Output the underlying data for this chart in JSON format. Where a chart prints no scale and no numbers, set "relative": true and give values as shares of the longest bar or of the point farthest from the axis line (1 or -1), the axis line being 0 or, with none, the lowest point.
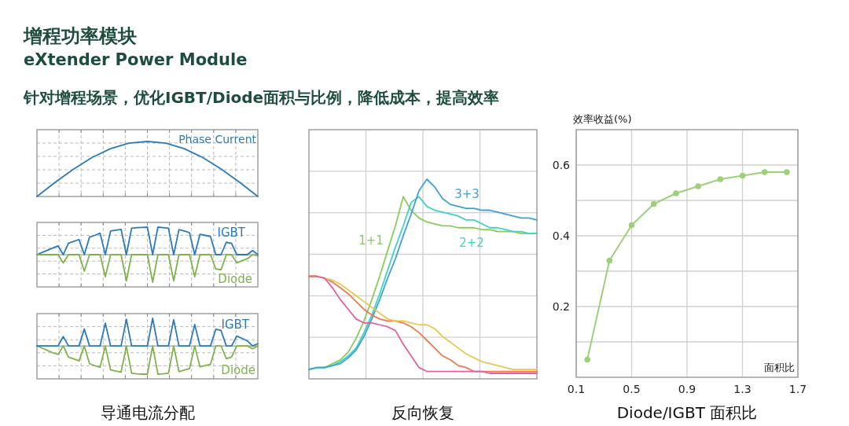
{
  "chart_data": [
    {
      "type": "other",
      "title": "增程功率模块",
      "subtitle": "eXtender Power Module",
      "annotations": [
        "针对增程场景，优化IGBT/Diode面积与比例，降低成本，提高效率"
      ]
    },
    {
      "type": "line",
      "relative": true,
      "grid": true,
      "categories": [
        null,
        null,
        null,
        null,
        null,
        null,
        null,
        null,
        null,
        null,
        null,
        null,
        null
      ],
      "series": [
        {
          "name": "Phase Current",
          "color": "#2b7bb9",
          "values": [
            0,
            0.26,
            0.5,
            0.71,
            0.87,
            0.97,
            1.0,
            0.97,
            0.87,
            0.71,
            0.5,
            0.26,
            0
          ]
        }
      ]
    },
    {
      "type": "line",
      "relative": true,
      "grid": true,
      "categories": [
        null,
        null,
        null,
        null,
        null,
        null,
        null,
        null,
        null,
        null,
        null,
        null,
        null,
        null,
        null,
        null,
        null,
        null,
        null,
        null,
        null,
        null,
        null,
        null,
        null,
        null,
        null,
        null,
        null,
        null,
        null,
        null,
        null,
        null,
        null,
        null,
        null,
        null,
        null,
        null,
        null,
        null,
        null
      ],
      "series": [
        {
          "name": "IGBT",
          "color": "#2b7bb9",
          "values": [
            0,
            0.08,
            0.16,
            0.24,
            0.32,
            0,
            0.42,
            0.48,
            0.55,
            0,
            0.64,
            0.7,
            0.78,
            0,
            0.86,
            0.89,
            0.92,
            0,
            0.96,
            0.98,
            0.99,
            1.0,
            0,
            1.0,
            0.98,
            0.96,
            0,
            0.91,
            0.86,
            0.8,
            0,
            0.74,
            0.7,
            0.66,
            0,
            0,
            0.45,
            0.41,
            0,
            0,
            0,
            0.15,
            0
          ]
        },
        {
          "name": "Diode",
          "color": "#7fb24a",
          "values": [
            0,
            0,
            0,
            0,
            0,
            -0.3,
            0,
            0,
            0,
            -0.6,
            0,
            0,
            0,
            -0.8,
            0,
            0,
            0,
            -0.95,
            0,
            0,
            0,
            0,
            -1.0,
            0,
            0,
            0,
            -0.95,
            0,
            0,
            0,
            -0.8,
            0,
            0,
            0,
            -0.52,
            -0.55,
            0,
            0,
            -0.3,
            -0.22,
            -0.15,
            0,
            -0.05
          ]
        }
      ]
    },
    {
      "type": "line",
      "relative": true,
      "grid": true,
      "xlabel": "导通电流分配",
      "categories": [
        null,
        null,
        null,
        null,
        null,
        null,
        null,
        null,
        null,
        null,
        null,
        null,
        null,
        null,
        null,
        null,
        null,
        null,
        null,
        null,
        null,
        null,
        null,
        null,
        null,
        null,
        null,
        null,
        null,
        null,
        null,
        null,
        null,
        null,
        null,
        null,
        null,
        null,
        null,
        null,
        null,
        null,
        null
      ],
      "series": [
        {
          "name": "Diode",
          "color": "#7fb24a",
          "values": [
            0,
            -0.08,
            -0.16,
            -0.24,
            -0.3,
            0,
            -0.4,
            -0.46,
            -0.53,
            0,
            -0.63,
            -0.7,
            -0.76,
            0,
            -0.85,
            -0.89,
            -0.93,
            0,
            -0.97,
            -0.99,
            -1.0,
            -1.0,
            0,
            -1.0,
            -0.99,
            -0.97,
            0,
            -0.91,
            -0.86,
            -0.81,
            0,
            -0.74,
            -0.7,
            -0.65,
            0,
            0,
            -0.45,
            -0.4,
            0,
            0,
            0,
            -0.1,
            0
          ]
        },
        {
          "name": "IGBT",
          "color": "#2b7bb9",
          "values": [
            0,
            0,
            0,
            0,
            0,
            0.33,
            0,
            0,
            0,
            0.6,
            0,
            0,
            0,
            0.81,
            0,
            0,
            0,
            0.95,
            0,
            0,
            0,
            0,
            0.98,
            0,
            0,
            0,
            0.93,
            0,
            0,
            0,
            0.76,
            0,
            0,
            0,
            0.59,
            0.55,
            0,
            0,
            0.35,
            0.27,
            0.18,
            0,
            0.08
          ]
        }
      ]
    },
    {
      "type": "line",
      "relative": true,
      "grid": true,
      "xlabel": "反向恢复",
      "categories": [
        null,
        null,
        null,
        null,
        null,
        null,
        null,
        null,
        null,
        null,
        null,
        null,
        null,
        null,
        null,
        null,
        null,
        null,
        null,
        null,
        null,
        null,
        null,
        null,
        null,
        null,
        null,
        null,
        null,
        null
      ],
      "series": [
        {
          "name": "1+1",
          "color": "#8ccc5a",
          "values": [
            0.02,
            0.03,
            0.03,
            0.05,
            0.07,
            0.11,
            0.18,
            0.27,
            0.38,
            0.5,
            0.63,
            0.76,
            0.91,
            0.84,
            0.8,
            0.78,
            0.77,
            0.76,
            0.76,
            0.75,
            0.75,
            0.75,
            0.74,
            0.74,
            0.73,
            0.73,
            0.73,
            0.72,
            0.72,
            0.72
          ]
        },
        {
          "name": "2+2",
          "color": "#3fd3c0",
          "values": [
            0.02,
            0.03,
            0.03,
            0.04,
            0.06,
            0.09,
            0.13,
            0.21,
            0.3,
            0.41,
            0.53,
            0.65,
            0.76,
            0.88,
            0.91,
            0.86,
            0.84,
            0.83,
            0.82,
            0.81,
            0.79,
            0.79,
            0.77,
            0.75,
            0.75,
            0.74,
            0.73,
            0.73,
            0.72,
            0.72
          ]
        },
        {
          "name": "3+3",
          "color": "#3ea0dc",
          "values": [
            0.02,
            0.03,
            0.03,
            0.04,
            0.05,
            0.08,
            0.12,
            0.19,
            0.28,
            0.38,
            0.49,
            0.59,
            0.71,
            0.82,
            0.94,
            1.0,
            0.96,
            0.9,
            0.87,
            0.86,
            0.85,
            0.85,
            0.84,
            0.84,
            0.83,
            0.82,
            0.81,
            0.8,
            0.8,
            0.79
          ]
        },
        {
          "color": "#ec7a50",
          "values": [
            0.5,
            0.5,
            0.49,
            0.47,
            0.44,
            0.41,
            0.37,
            0.33,
            0.3,
            0.28,
            0.27,
            0.27,
            0.26,
            0.24,
            0.21,
            0.17,
            0.13,
            0.09,
            0.07,
            0.04,
            0.03,
            0.01,
            0.01,
            0.01,
            0.01,
            0.01,
            0.01,
            0.01,
            0.01,
            0.01
          ]
        },
        {
          "color": "#e8c850",
          "values": [
            0.5,
            0.5,
            0.49,
            0.48,
            0.46,
            0.43,
            0.4,
            0.37,
            0.34,
            0.31,
            0.28,
            0.27,
            0.27,
            0.26,
            0.25,
            0.25,
            0.23,
            0.19,
            0.16,
            0.13,
            0.1,
            0.08,
            0.06,
            0.05,
            0.04,
            0.03,
            0.02,
            0.02,
            0.02,
            0.02
          ]
        },
        {
          "color": "#e060a0",
          "values": [
            0.5,
            0.5,
            0.49,
            0.44,
            0.38,
            0.33,
            0.28,
            0.26,
            0.26,
            0.25,
            0.24,
            0.22,
            0.15,
            0.09,
            0.03,
            0.01,
            0.01,
            0.01,
            0.01,
            0.01,
            0.01,
            0.01,
            0.01,
            0,
            0,
            0,
            0,
            0,
            0,
            0
          ]
        }
      ]
    },
    {
      "type": "line",
      "grid": true,
      "marker": "circle",
      "xlabel": "Diode/IGBT 面积比",
      "ylabel": "效率收益(%)",
      "annotations": [
        "面积比"
      ],
      "x": [
        0.18,
        0.34,
        0.5,
        0.66,
        0.82,
        0.98,
        1.14,
        1.3,
        1.46,
        1.62
      ],
      "series": [
        {
          "color": "#9dd07a",
          "values": [
            0.05,
            0.33,
            0.43,
            0.49,
            0.52,
            0.54,
            0.56,
            0.57,
            0.58,
            0.58
          ]
        }
      ],
      "xlim": [
        0.1,
        1.7
      ],
      "xticks": [
        0.1,
        0.5,
        0.9,
        1.3,
        1.7
      ],
      "ylim": [
        0,
        0.7
      ],
      "yticks": [
        {
          "value": 0.1,
          "label": null
        },
        0.2,
        {
          "value": 0.3,
          "label": null
        },
        0.4,
        {
          "value": 0.5,
          "label": null
        },
        0.6
      ]
    }
  ]
}
